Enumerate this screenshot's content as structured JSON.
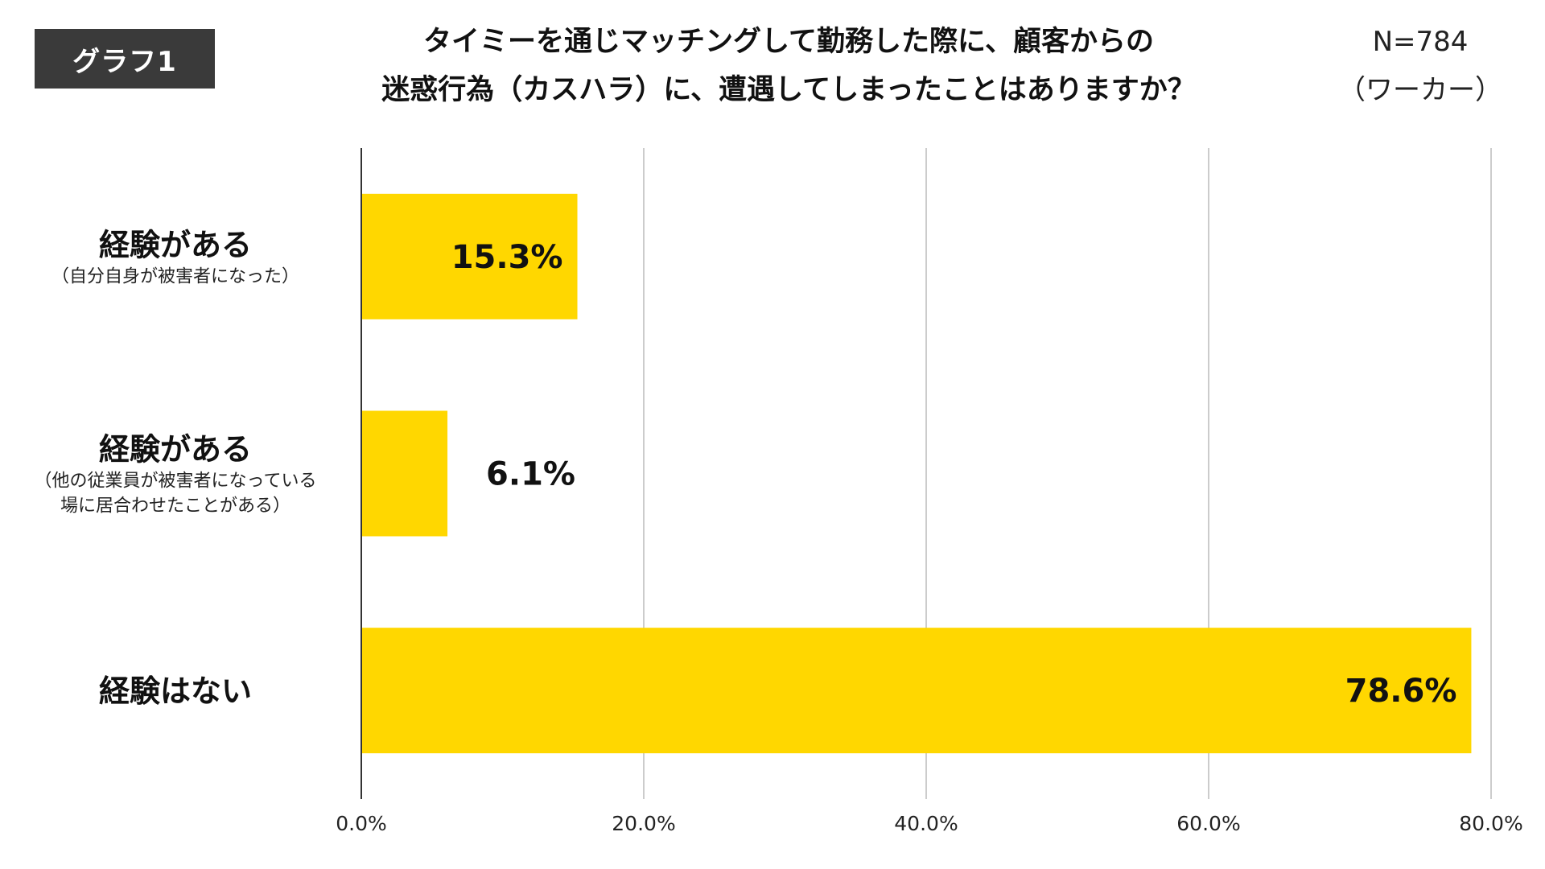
{
  "badge": {
    "label": "グラフ1"
  },
  "title_lines": [
    "タイミーを通じマッチングして勤務した際に、顧客からの",
    "迷惑行為（カスハラ）に、遭遇してしまったことはありますか？"
  ],
  "sample": {
    "n": "N=784",
    "group": "（ワーカー）"
  },
  "colors": {
    "bar": "#FFD700",
    "grid": "#cccccc",
    "axis": "#333333"
  },
  "chart_data": {
    "type": "bar",
    "orientation": "horizontal",
    "title": "タイミーを通じマッチングして勤務した際に、顧客からの迷惑行為（カスハラ）に、遭遇してしまったことはありますか？",
    "categories": [
      {
        "main": "経験がある",
        "sub": [
          "（自分自身が被害者になった）"
        ]
      },
      {
        "main": "経験がある",
        "sub": [
          "（他の従業員が被害者になっている",
          "場に居合わせたことがある）"
        ]
      },
      {
        "main": "経験はない",
        "sub": []
      }
    ],
    "values": [
      15.3,
      6.1,
      78.6
    ],
    "value_labels": [
      "15.3%",
      "6.1%",
      "78.6%"
    ],
    "xlim": [
      0,
      80
    ],
    "ticks": [
      0,
      20,
      40,
      60,
      80
    ],
    "tick_labels": [
      "0.0%",
      "20.0%",
      "40.0%",
      "60.0%",
      "80.0%"
    ],
    "grid": true,
    "legend": "none"
  }
}
